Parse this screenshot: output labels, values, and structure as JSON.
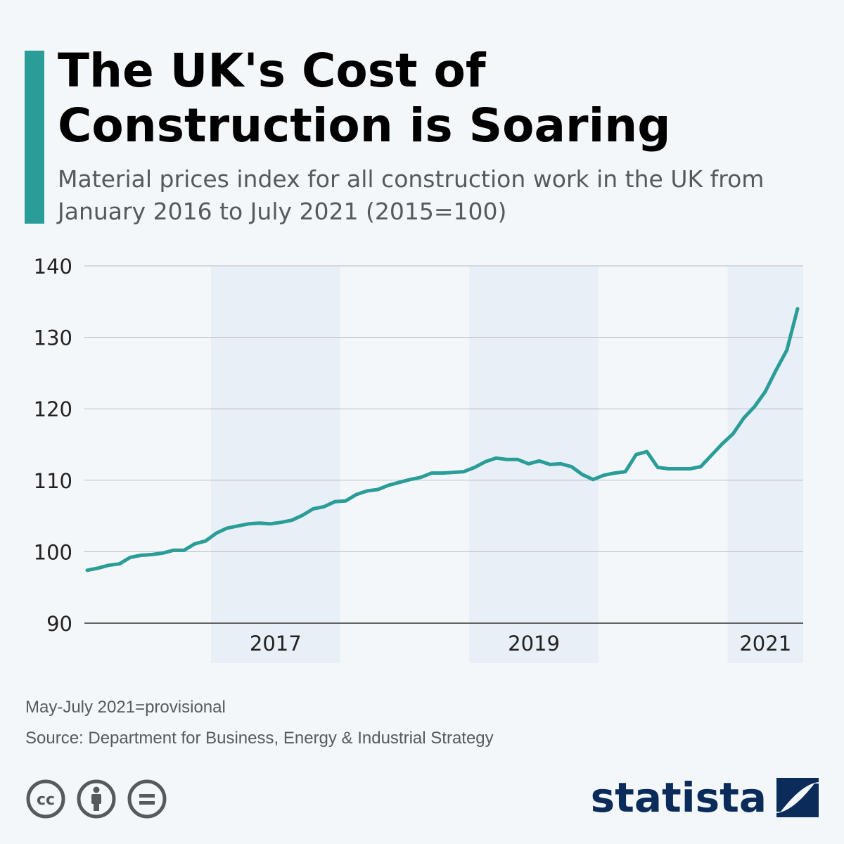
{
  "header": {
    "title": "The UK's Cost of Construction is Soaring",
    "subtitle": "Material prices index for all construction work in the UK from January 2016 to July 2021 (2015=100)"
  },
  "colors": {
    "accent": "#2a9d98",
    "line": "#2a9d98",
    "band": "#e9eff7",
    "brand": "#0b2c5a"
  },
  "chart_data": {
    "type": "line",
    "title": "The UK's Cost of Construction is Soaring",
    "xlabel": "",
    "ylabel": "",
    "ylim": [
      90,
      140
    ],
    "yticks": [
      "90",
      "100",
      "110",
      "120",
      "130",
      "140"
    ],
    "xlim": [
      "2016-01",
      "2021-07"
    ],
    "xticks": [
      {
        "label": "2017",
        "year": 2017
      },
      {
        "label": "2019",
        "year": 2019
      },
      {
        "label": "2021",
        "year": 2021
      }
    ],
    "shaded_years": [
      2017,
      2019,
      2021
    ],
    "grid": true,
    "series": [
      {
        "values": [
          97.4,
          97.7,
          98.1,
          98.3,
          99.2,
          99.5,
          99.6,
          99.8,
          100.2,
          100.2,
          101.1,
          101.5,
          102.6,
          103.3,
          103.6,
          103.9,
          104.0,
          103.9,
          104.1,
          104.4,
          105.1,
          106.0,
          106.3,
          107.0,
          107.1,
          108.0,
          108.5,
          108.7,
          109.3,
          109.7,
          110.1,
          110.4,
          111.0,
          111.0,
          111.1,
          111.2,
          111.8,
          112.6,
          113.1,
          112.9,
          112.9,
          112.3,
          112.7,
          112.2,
          112.3,
          111.9,
          110.8,
          110.1,
          110.7,
          111.0,
          111.2,
          113.6,
          114.0,
          111.8,
          111.6,
          111.6,
          111.6,
          111.9,
          113.5,
          115.1,
          116.5,
          118.7,
          120.3,
          122.4,
          125.4,
          128.2,
          134.0
        ]
      }
    ]
  },
  "footer": {
    "note": "May-July 2021=provisional",
    "source": "Source: Department for Business, Energy & Industrial Strategy",
    "brand": "statista",
    "license_icons": [
      "cc-icon",
      "attribution-icon",
      "no-derivatives-icon"
    ]
  }
}
